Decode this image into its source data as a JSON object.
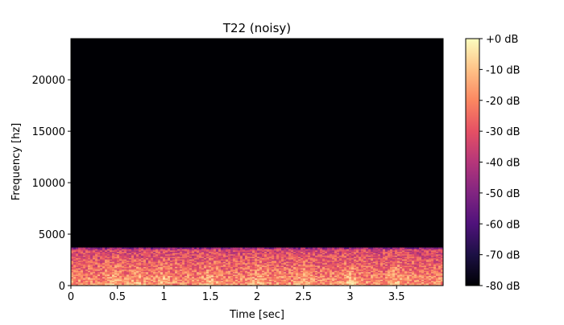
{
  "chart_data": {
    "type": "heatmap",
    "title": "T22 (noisy)",
    "xlabel": "Time [sec]",
    "ylabel": "Frequency [hz]",
    "xlim": [
      0,
      4.0
    ],
    "ylim": [
      0,
      24000
    ],
    "x_ticks": [
      0,
      0.5,
      1,
      1.5,
      2,
      2.5,
      3,
      3.5
    ],
    "x_tick_labels": [
      "0",
      "0.5",
      "1",
      "1.5",
      "2",
      "2.5",
      "3",
      "3.5"
    ],
    "y_ticks": [
      0,
      5000,
      10000,
      15000,
      20000
    ],
    "y_tick_labels": [
      "0",
      "5000",
      "10000",
      "15000",
      "20000"
    ],
    "colorbar": {
      "colormap": "magma",
      "range": [
        -80,
        0
      ],
      "ticks": [
        0,
        -10,
        -20,
        -30,
        -40,
        -50,
        -60,
        -70,
        -80
      ],
      "tick_labels": [
        "+0 dB",
        "-10 dB",
        "-20 dB",
        "-30 dB",
        "-40 dB",
        "-50 dB",
        "-60 dB",
        "-70 dB",
        "-80 dB"
      ]
    },
    "content": {
      "active_band_hz": [
        0,
        3700
      ],
      "active_band_level_db": [
        -40,
        -5
      ],
      "above_band_level_db": -80,
      "bright_regions_sec": [
        0.45,
        0.7,
        1.0,
        1.5,
        2.0,
        2.5,
        3.0,
        3.5
      ]
    }
  }
}
